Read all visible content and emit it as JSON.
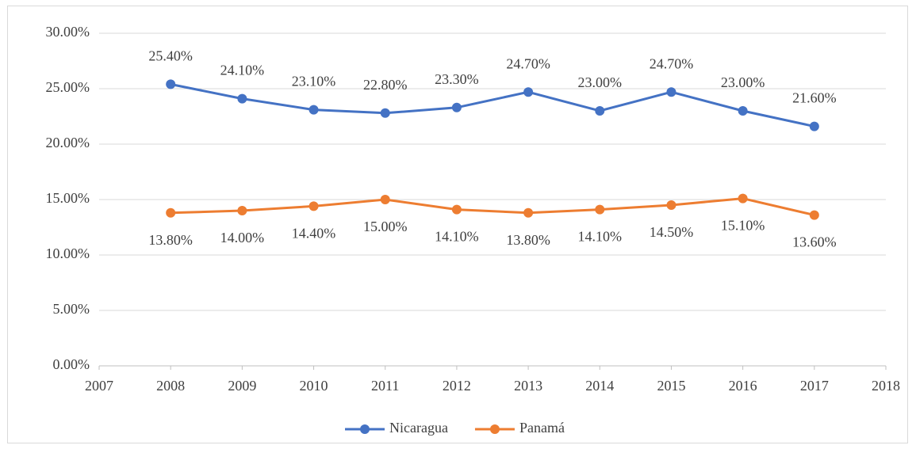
{
  "chart_data": {
    "type": "line",
    "x": [
      2008,
      2009,
      2010,
      2011,
      2012,
      2013,
      2014,
      2015,
      2016,
      2017
    ],
    "series": [
      {
        "name": "Nicaragua",
        "color": "#4472c4",
        "values": [
          25.4,
          24.1,
          23.1,
          22.8,
          23.3,
          24.7,
          23.0,
          24.7,
          23.0,
          21.6
        ],
        "value_labels": [
          "25.40%",
          "24.10%",
          "23.10%",
          "22.80%",
          "23.30%",
          "24.70%",
          "23.00%",
          "24.70%",
          "23.00%",
          "21.60%"
        ]
      },
      {
        "name": "Panamá",
        "color": "#ed7d31",
        "values": [
          13.8,
          14.0,
          14.4,
          15.0,
          14.1,
          13.8,
          14.1,
          14.5,
          15.1,
          13.6
        ],
        "value_labels": [
          "13.80%",
          "14.00%",
          "14.40%",
          "15.00%",
          "14.10%",
          "13.80%",
          "14.10%",
          "14.50%",
          "15.10%",
          "13.60%"
        ]
      }
    ],
    "xlim": [
      2007,
      2018
    ],
    "xticks": [
      2007,
      2008,
      2009,
      2010,
      2011,
      2012,
      2013,
      2014,
      2015,
      2016,
      2017,
      2018
    ],
    "ylim": [
      0,
      30
    ],
    "yticks": [
      {
        "value": 0,
        "label": "0.00%"
      },
      {
        "value": 5,
        "label": "5.00%"
      },
      {
        "value": 10,
        "label": "10.00%"
      },
      {
        "value": 15,
        "label": "15.00%"
      },
      {
        "value": 20,
        "label": "20.00%"
      },
      {
        "value": 25,
        "label": "25.00%"
      },
      {
        "value": 30,
        "label": "30.00%"
      }
    ],
    "grid": true,
    "legend": "bottom"
  }
}
